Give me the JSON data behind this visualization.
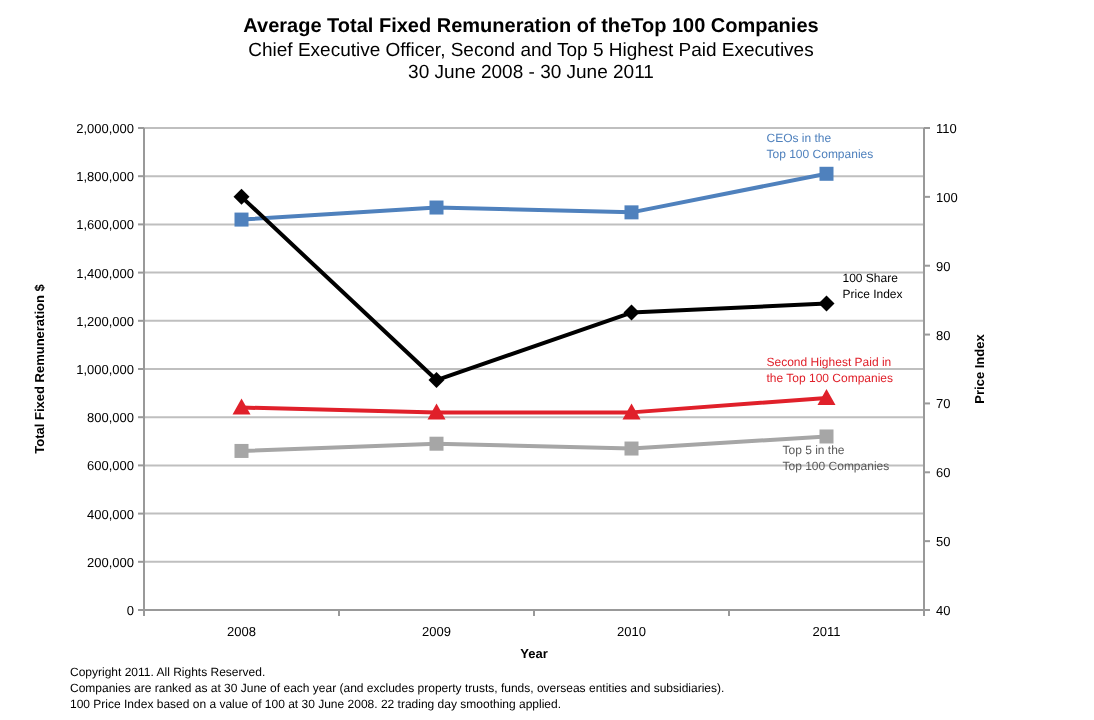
{
  "chart_data": {
    "type": "line",
    "title": "Average Total  Fixed Remuneration of theTop 100 Companies",
    "subtitle": "Chief Executive Officer, Second and Top 5 Highest Paid Executives\n30 June 2008 - 30 June 2011",
    "xlabel": "Year",
    "ylabel": "Total Fixed Remuneration $",
    "y2label": "Price Index",
    "categories": [
      "2008",
      "2009",
      "2010",
      "2011"
    ],
    "series": [
      {
        "name": "CEOs in the\nTop 100 Companies",
        "color": "#4f81bd",
        "marker": "square",
        "values": [
          1620000,
          1670000,
          1650000,
          1810000
        ]
      },
      {
        "name": "100 Share\nPrice Index",
        "color": "#000000",
        "marker": "diamond",
        "axis": "y2",
        "values": [
          100.0,
          73.4,
          83.2,
          84.5
        ]
      },
      {
        "name": "Second Highest Paid  in\nthe Top 100 Companies",
        "color": "#e0202a",
        "marker": "triangle",
        "values": [
          840000,
          820000,
          820000,
          880000
        ]
      },
      {
        "name": "Top 5 in the\nTop 100 Companies",
        "color": "#a6a6a6",
        "marker": "square",
        "values": [
          660000,
          690000,
          670000,
          720000
        ]
      }
    ],
    "ylim": [
      0,
      2000000
    ],
    "yticks": [
      {
        "value": 0,
        "label": "0"
      },
      {
        "value": 200000,
        "label": "200,000"
      },
      {
        "value": 400000,
        "label": "400,000"
      },
      {
        "value": 600000,
        "label": "600,000"
      },
      {
        "value": 800000,
        "label": "800,000"
      },
      {
        "value": 1000000,
        "label": "1,000,000"
      },
      {
        "value": 1200000,
        "label": "1,200,000"
      },
      {
        "value": 1400000,
        "label": "1,400,000"
      },
      {
        "value": 1600000,
        "label": "1,600,000"
      },
      {
        "value": 1800000,
        "label": "1,800,000"
      },
      {
        "value": 2000000,
        "label": "2,000,000"
      }
    ],
    "y2lim": [
      40,
      110
    ],
    "y2ticks": [
      40,
      50,
      60,
      70,
      80,
      90,
      100,
      110
    ],
    "grid": "y",
    "annotations": [
      "Copyright 2011. All Rights Reserved.",
      "Companies are ranked as at 30 June of each year (and excludes property trusts, funds, overseas entities and subsidiaries).",
      "100 Price Index based on a value of 100 at 30 June 2008. 22 trading day smoothing applied."
    ]
  }
}
